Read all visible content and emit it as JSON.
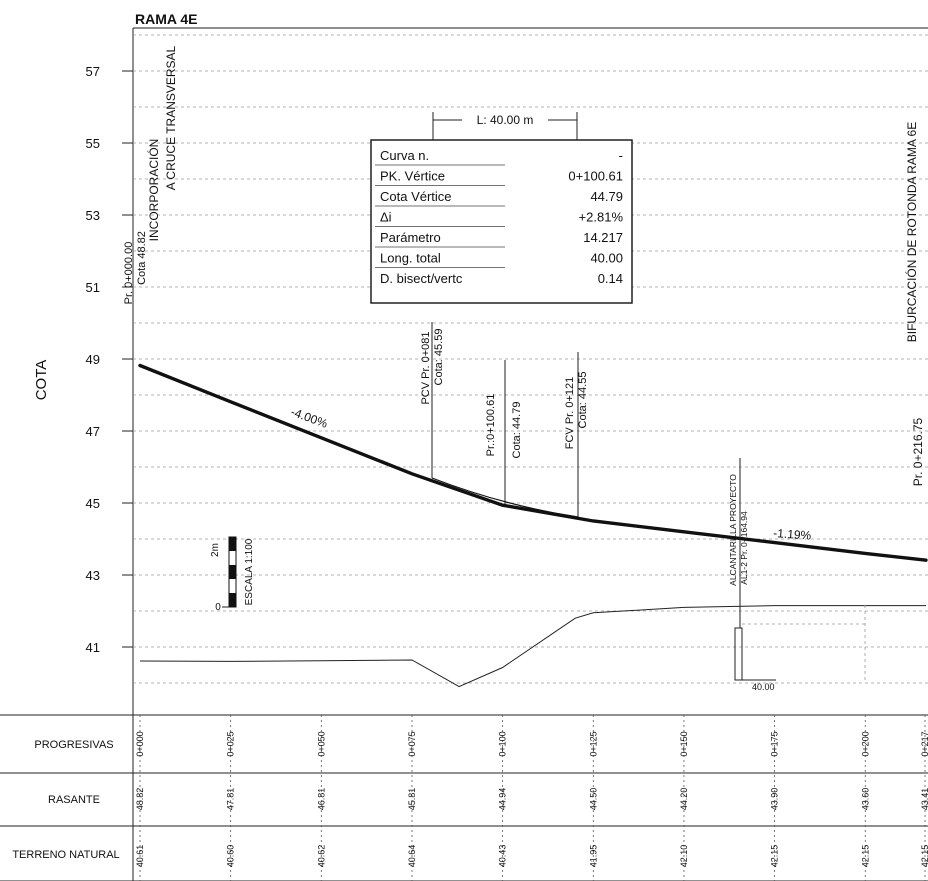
{
  "title": "RAMA 4E",
  "y_axis_label": "COTA",
  "y_ticks": [
    "57",
    "55",
    "53",
    "51",
    "49",
    "47",
    "45",
    "43",
    "41"
  ],
  "start_note": {
    "line1": "INCORPORACIÓN",
    "line2": "A CRUCE TRANSVERSAL"
  },
  "end_note": "BIFURCACIÓN DE ROTONDA RAMA 6E",
  "start_station": {
    "pk": "Pr. 0+000.00",
    "cota": "Cota 48.82"
  },
  "end_station": {
    "pk": "Pr. 0+216.75"
  },
  "curve_length": "L: 40.00 m",
  "curve_table": [
    {
      "label": "Curva n.",
      "value": "-"
    },
    {
      "label": "PK. Vértice",
      "value": "0+100.61"
    },
    {
      "label": "Cota Vértice",
      "value": "44.79"
    },
    {
      "label": "Δi",
      "value": "+2.81%"
    },
    {
      "label": "Parámetro",
      "value": "14.217"
    },
    {
      "label": "Long. total",
      "value": "40.00"
    },
    {
      "label": "D. bisect/vertc",
      "value": "0.14"
    }
  ],
  "pcv": {
    "pk": "PCV Pr. 0+081",
    "cota": "Cota: 45.59"
  },
  "vertex": {
    "pk": "Pr.:0+100.61",
    "cota": "Cota: 44.79"
  },
  "fcv": {
    "pk": "FCV Pr. 0+121",
    "cota": "Cota: 44.55"
  },
  "grade_1": "-4.00%",
  "grade_2": "-1.19%",
  "culvert": {
    "line1": "ALCANTARILLA PROYECTO",
    "line2": "AL1-2 Pr. 0+164.94",
    "length": "40.00"
  },
  "scale": {
    "label": "ESCALA 1:100",
    "top": "2m",
    "bottom": "0"
  },
  "band_labels": [
    "PROGRESIVAS",
    "RASANTE",
    "TERRENO NATURAL"
  ],
  "chart_data": {
    "type": "line",
    "title": "RAMA 4E",
    "xlabel": "",
    "ylabel": "COTA",
    "ylim": [
      40,
      58
    ],
    "xlim": [
      0,
      216.75
    ],
    "grid": true,
    "series": [
      {
        "name": "RASANTE",
        "x": [
          0,
          25,
          50,
          75,
          100,
          125,
          150,
          175,
          200,
          216.75
        ],
        "values": [
          48.82,
          47.81,
          46.81,
          45.81,
          44.94,
          44.5,
          44.2,
          43.9,
          43.6,
          43.41
        ]
      },
      {
        "name": "TERRENO NATURAL",
        "x": [
          0,
          25,
          50,
          75,
          88,
          100,
          120,
          125,
          150,
          175,
          200,
          216.75
        ],
        "values": [
          40.61,
          40.6,
          40.62,
          40.64,
          39.9,
          40.43,
          41.8,
          41.95,
          42.1,
          42.15,
          42.15,
          42.15
        ]
      }
    ],
    "stations": [
      "0+000",
      "0+025",
      "0+050",
      "0+075",
      "0+100",
      "0+125",
      "0+150",
      "0+175",
      "0+200",
      "0+217"
    ],
    "rasante_labels": [
      "48.82",
      "47.81",
      "46.81",
      "45.81",
      "44.94",
      "44.50",
      "44.20",
      "43.90",
      "43.60",
      "43.41"
    ],
    "terreno_labels": [
      "40.61",
      "40.60",
      "40.62",
      "40.64",
      "40.43",
      "41.95",
      "42.10",
      "42.15",
      "42.15",
      "42.15"
    ]
  }
}
